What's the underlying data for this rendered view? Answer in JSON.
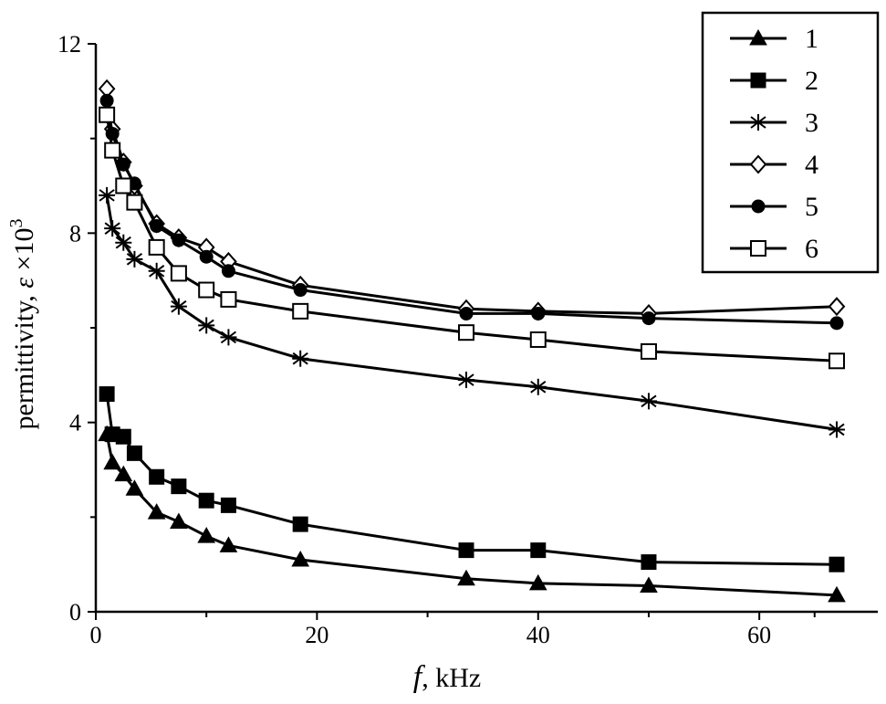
{
  "chart_data": {
    "type": "line",
    "xlabel_symbol": "f",
    "xlabel_unit": ", kHz",
    "ylabel_text": "permittivity, ",
    "ylabel_symbol": "ε",
    "ylabel_factor": " ×10",
    "ylabel_exp": "3",
    "xlim": [
      0,
      70
    ],
    "ylim": [
      0,
      12
    ],
    "xticks": [
      0,
      20,
      40,
      60
    ],
    "xtick_labels": [
      "0",
      "20",
      "40",
      "60"
    ],
    "yticks": [
      0,
      4,
      8,
      12
    ],
    "ytick_labels": [
      "0",
      "4",
      "8",
      "12"
    ],
    "grid": false,
    "legend_position": "top-right",
    "series": [
      {
        "name": "1",
        "marker": "triangle-filled",
        "x": [
          1,
          1.5,
          2.5,
          3.5,
          5.5,
          7.5,
          10,
          12,
          18.5,
          33.5,
          40,
          50,
          67
        ],
        "y": [
          3.75,
          3.15,
          2.9,
          2.6,
          2.1,
          1.9,
          1.6,
          1.4,
          1.1,
          0.7,
          0.6,
          0.55,
          0.35
        ]
      },
      {
        "name": "2",
        "marker": "square-filled",
        "x": [
          1,
          1.5,
          2.5,
          3.5,
          5.5,
          7.5,
          10,
          12,
          18.5,
          33.5,
          40,
          50,
          67
        ],
        "y": [
          4.6,
          3.75,
          3.7,
          3.35,
          2.85,
          2.65,
          2.35,
          2.25,
          1.85,
          1.3,
          1.3,
          1.05,
          1.0
        ]
      },
      {
        "name": "3",
        "marker": "asterisk",
        "x": [
          1,
          1.5,
          2.5,
          3.5,
          5.5,
          7.5,
          10,
          12,
          18.5,
          33.5,
          40,
          50,
          67
        ],
        "y": [
          8.8,
          8.1,
          7.8,
          7.45,
          7.2,
          6.45,
          6.05,
          5.8,
          5.35,
          4.9,
          4.75,
          4.45,
          3.85
        ]
      },
      {
        "name": "4",
        "marker": "diamond-open",
        "x": [
          1,
          1.5,
          2.5,
          3.5,
          5.5,
          7.5,
          10,
          12,
          18.5,
          33.5,
          40,
          50,
          67
        ],
        "y": [
          11.05,
          10.2,
          9.5,
          9.0,
          8.2,
          7.9,
          7.7,
          7.4,
          6.9,
          6.4,
          6.35,
          6.3,
          6.45
        ]
      },
      {
        "name": "5",
        "marker": "circle-filled",
        "x": [
          1,
          1.5,
          2.5,
          3.5,
          5.5,
          7.5,
          10,
          12,
          18.5,
          33.5,
          40,
          50,
          67
        ],
        "y": [
          10.8,
          10.1,
          9.45,
          9.05,
          8.15,
          7.85,
          7.5,
          7.2,
          6.8,
          6.3,
          6.3,
          6.2,
          6.1
        ]
      },
      {
        "name": "6",
        "marker": "square-open",
        "x": [
          1,
          1.5,
          2.5,
          3.5,
          5.5,
          7.5,
          10,
          12,
          18.5,
          33.5,
          40,
          50,
          67
        ],
        "y": [
          10.5,
          9.75,
          9.0,
          8.65,
          7.7,
          7.15,
          6.8,
          6.6,
          6.35,
          5.9,
          5.75,
          5.5,
          5.3
        ]
      }
    ]
  }
}
